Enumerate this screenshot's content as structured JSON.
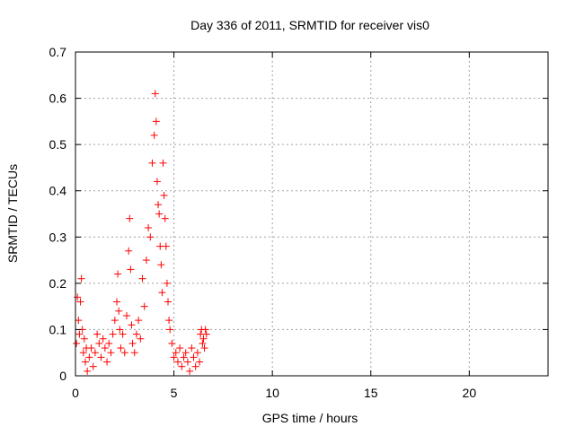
{
  "chart_data": {
    "type": "scatter",
    "title": "Day 336 of 2011, SRMTID for receiver vis0",
    "xlabel": "GPS time / hours",
    "ylabel": "SRMTID / TECUs",
    "xlim": [
      0,
      24
    ],
    "ylim": [
      0,
      0.7
    ],
    "xticks": [
      0,
      5,
      10,
      15,
      20
    ],
    "yticks": [
      0,
      0.1,
      0.2,
      0.3,
      0.4,
      0.5,
      0.6,
      0.7
    ],
    "grid": true,
    "legend": "none",
    "marker": "+",
    "series": [
      {
        "name": "SRMTID vis0",
        "color": "#ff0000",
        "x": [
          0.05,
          0.1,
          0.15,
          0.2,
          0.25,
          0.3,
          0.35,
          0.4,
          0.45,
          0.5,
          0.55,
          0.6,
          0.7,
          0.8,
          0.9,
          1.0,
          1.1,
          1.2,
          1.3,
          1.4,
          1.5,
          1.6,
          1.7,
          1.8,
          1.9,
          2.0,
          2.1,
          2.15,
          2.2,
          2.25,
          2.3,
          2.4,
          2.5,
          2.6,
          2.7,
          2.75,
          2.8,
          2.85,
          2.9,
          3.0,
          3.1,
          3.2,
          3.3,
          3.4,
          3.5,
          3.6,
          3.7,
          3.8,
          3.9,
          4.0,
          4.05,
          4.1,
          4.15,
          4.2,
          4.25,
          4.3,
          4.35,
          4.4,
          4.45,
          4.5,
          4.55,
          4.6,
          4.65,
          4.7,
          4.75,
          4.8,
          4.9,
          5.0,
          5.1,
          5.2,
          5.3,
          5.4,
          5.5,
          5.6,
          5.7,
          5.8,
          5.9,
          6.0,
          6.1,
          6.2,
          6.3,
          6.35,
          6.4,
          6.45,
          6.5,
          6.55,
          6.6,
          6.65
        ],
        "y": [
          0.07,
          0.17,
          0.12,
          0.09,
          0.16,
          0.21,
          0.1,
          0.05,
          0.08,
          0.03,
          0.06,
          0.01,
          0.04,
          0.06,
          0.02,
          0.05,
          0.09,
          0.07,
          0.04,
          0.08,
          0.06,
          0.03,
          0.07,
          0.05,
          0.09,
          0.12,
          0.16,
          0.22,
          0.14,
          0.1,
          0.06,
          0.09,
          0.05,
          0.13,
          0.27,
          0.34,
          0.23,
          0.11,
          0.07,
          0.05,
          0.09,
          0.12,
          0.08,
          0.21,
          0.15,
          0.25,
          0.32,
          0.3,
          0.46,
          0.52,
          0.61,
          0.55,
          0.42,
          0.37,
          0.35,
          0.28,
          0.24,
          0.18,
          0.46,
          0.39,
          0.34,
          0.28,
          0.2,
          0.16,
          0.12,
          0.1,
          0.07,
          0.04,
          0.05,
          0.03,
          0.06,
          0.02,
          0.04,
          0.05,
          0.03,
          0.01,
          0.06,
          0.04,
          0.02,
          0.05,
          0.03,
          0.09,
          0.1,
          0.07,
          0.08,
          0.06,
          0.1,
          0.09
        ]
      }
    ]
  }
}
